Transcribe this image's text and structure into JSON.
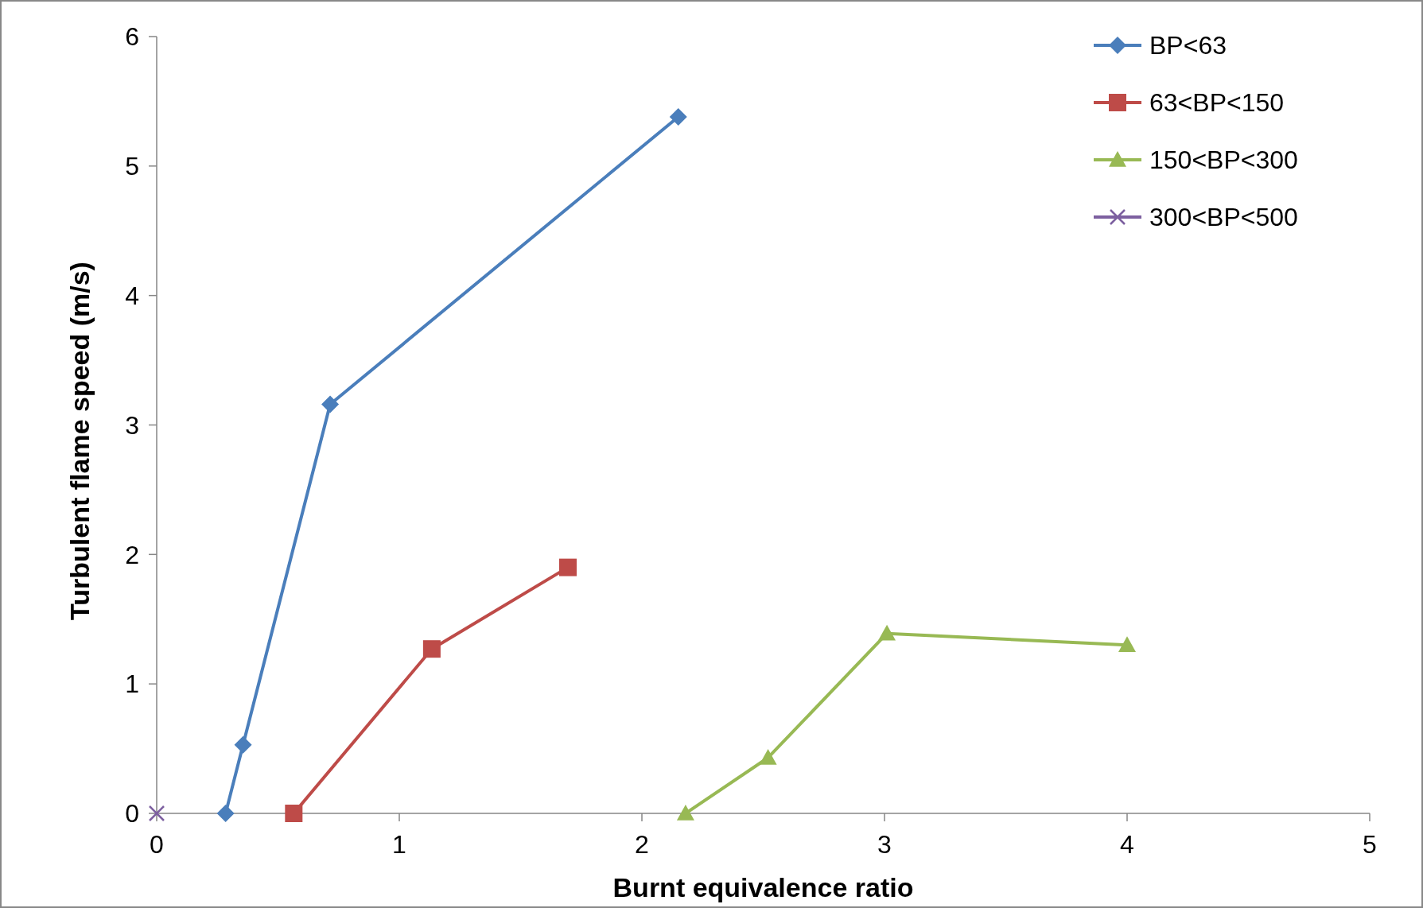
{
  "chart_data": {
    "type": "line",
    "xlabel": "Burnt equivalence ratio",
    "ylabel": "Turbulent flame speed (m/s)",
    "xlim": [
      0,
      5
    ],
    "xticks": [
      0,
      1,
      2,
      3,
      4,
      5
    ],
    "ylim": [
      0,
      6
    ],
    "yticks": [
      0,
      1,
      2,
      3,
      4,
      5,
      6
    ],
    "grid": false,
    "legend": "top right",
    "series": [
      {
        "name": "BP<63",
        "color": "#4a7ebb",
        "marker": "diamond",
        "x": [
          0.284,
          0.356,
          0.715,
          2.15
        ],
        "values": [
          0,
          0.53,
          3.16,
          5.38
        ]
      },
      {
        "name": "63<BP<150",
        "color": "#be4b48",
        "marker": "square",
        "x": [
          0.565,
          1.134,
          1.695
        ],
        "values": [
          0,
          1.27,
          1.9
        ]
      },
      {
        "name": "150<BP<300",
        "color": "#98b954",
        "marker": "triangle",
        "x": [
          2.18,
          2.52,
          3.01,
          4.0
        ],
        "values": [
          0,
          0.43,
          1.39,
          1.3
        ]
      },
      {
        "name": "300<BP<500",
        "color": "#7d60a0",
        "marker": "cross",
        "x": [
          0
        ],
        "values": [
          0
        ]
      }
    ]
  }
}
